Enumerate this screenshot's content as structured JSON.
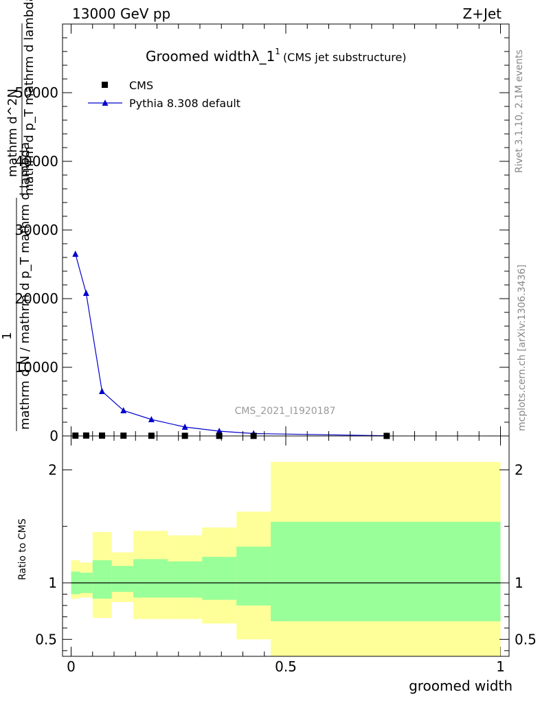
{
  "header": {
    "left": "13000 GeV pp",
    "right": "Z+Jet"
  },
  "title": {
    "main": "Groomed width",
    "lambda": "λ_1",
    "sup": "1",
    "sub": "(CMS jet substructure)"
  },
  "ylabel": {
    "numerator": "1",
    "denominator": "mathrm d N / mathrm d p_T mathrm d lambda",
    "top_num": "mathrm d^2N",
    "top_den": "mathrm d p_T mathrm d lambda"
  },
  "side_texts": {
    "rivet": "Rivet 3.1.10,  2.1M events",
    "mcplots": "mcplots.cern.ch [arXiv:1306.3436]"
  },
  "watermark": "CMS_2021_I1920187",
  "xlabel": "groomed width",
  "ratio_ylabel": "Ratio to CMS",
  "legend": [
    {
      "name": "CMS",
      "marker": "square",
      "color": "#000000"
    },
    {
      "name": "Pythia 8.308 default",
      "marker": "triangle",
      "color": "#0000cc"
    }
  ],
  "colors": {
    "band_inner": "#99ff99",
    "band_outer": "#ffff99",
    "mc_line": "#0000cc",
    "data": "#000000"
  },
  "chart_data": {
    "type": "line",
    "main": {
      "xlim": [
        -0.02,
        1.02
      ],
      "ylim": [
        0,
        60000
      ],
      "yticks": [
        0,
        10000,
        20000,
        30000,
        40000,
        50000
      ],
      "ytick_labels": [
        "0",
        "10000",
        "20000",
        "30000",
        "40000",
        "50000"
      ],
      "cms": {
        "x": [
          0.01,
          0.035,
          0.072,
          0.122,
          0.187,
          0.265,
          0.345,
          0.425,
          0.735
        ],
        "y": [
          50,
          60,
          50,
          40,
          30,
          20,
          15,
          10,
          5
        ]
      },
      "pythia": {
        "x": [
          0.01,
          0.035,
          0.072,
          0.122,
          0.187,
          0.265,
          0.345,
          0.425,
          0.735
        ],
        "y": [
          26500,
          20800,
          6500,
          3700,
          2400,
          1300,
          700,
          350,
          30
        ]
      }
    },
    "ratio": {
      "ylim": [
        0.35,
        2.3
      ],
      "yticks": [
        0.5,
        1,
        2
      ],
      "ytick_labels": [
        "0.5",
        "1",
        "2"
      ],
      "xticks": [
        0,
        0.5,
        1
      ],
      "xtick_labels": [
        "0",
        "0.5",
        "1"
      ],
      "bins": [
        {
          "x0": 0.0,
          "x1": 0.02,
          "inner_lo": 0.9,
          "inner_hi": 1.1,
          "outer_lo": 0.86,
          "outer_hi": 1.2
        },
        {
          "x0": 0.02,
          "x1": 0.05,
          "inner_lo": 0.91,
          "inner_hi": 1.09,
          "outer_lo": 0.87,
          "outer_hi": 1.18
        },
        {
          "x0": 0.05,
          "x1": 0.095,
          "inner_lo": 0.86,
          "inner_hi": 1.2,
          "outer_lo": 0.69,
          "outer_hi": 1.45
        },
        {
          "x0": 0.095,
          "x1": 0.145,
          "inner_lo": 0.92,
          "inner_hi": 1.15,
          "outer_lo": 0.83,
          "outer_hi": 1.27
        },
        {
          "x0": 0.145,
          "x1": 0.225,
          "inner_lo": 0.87,
          "inner_hi": 1.21,
          "outer_lo": 0.68,
          "outer_hi": 1.46
        },
        {
          "x0": 0.225,
          "x1": 0.305,
          "inner_lo": 0.87,
          "inner_hi": 1.19,
          "outer_lo": 0.68,
          "outer_hi": 1.42
        },
        {
          "x0": 0.305,
          "x1": 0.385,
          "inner_lo": 0.85,
          "inner_hi": 1.23,
          "outer_lo": 0.64,
          "outer_hi": 1.49
        },
        {
          "x0": 0.385,
          "x1": 0.465,
          "inner_lo": 0.8,
          "inner_hi": 1.32,
          "outer_lo": 0.5,
          "outer_hi": 1.63
        },
        {
          "x0": 0.465,
          "x1": 1.0,
          "inner_lo": 0.66,
          "inner_hi": 1.54,
          "outer_lo": 0.3,
          "outer_hi": 2.07
        }
      ]
    }
  }
}
